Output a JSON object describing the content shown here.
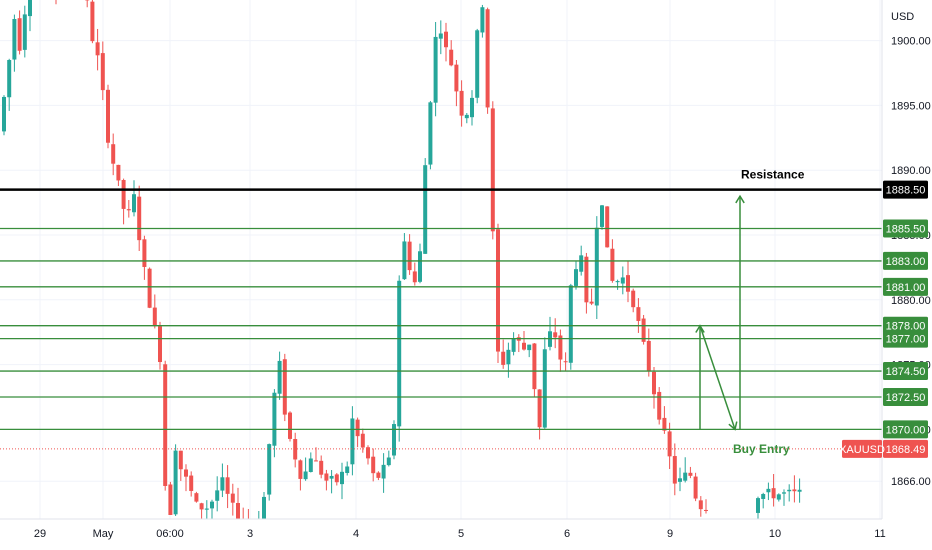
{
  "chart_data": {
    "type": "candlestick",
    "currency": "USD",
    "symbol": "XAUUSD",
    "y_range": [
      1864.5,
      1903.5
    ],
    "x_range": [
      0,
      932
    ],
    "yticks": [
      {
        "label": "1866.00",
        "value": 1866
      },
      {
        "label": "1870.00",
        "value": 1870
      },
      {
        "label": "1875.00",
        "value": 1875
      },
      {
        "label": "1880.00",
        "value": 1880
      },
      {
        "label": "1885.00",
        "value": 1885
      },
      {
        "label": "1890.00",
        "value": 1890
      },
      {
        "label": "1895.00",
        "value": 1895
      },
      {
        "label": "1900.00",
        "value": 1900
      }
    ],
    "xticks": [
      {
        "label": "29",
        "value": 40
      },
      {
        "label": "May",
        "value": 103
      },
      {
        "label": "06:00",
        "value": 170
      },
      {
        "label": "3",
        "value": 250
      },
      {
        "label": "4",
        "value": 356
      },
      {
        "label": "5",
        "value": 461
      },
      {
        "label": "6",
        "value": 567
      },
      {
        "label": "9",
        "value": 670
      },
      {
        "label": "10",
        "value": 775
      },
      {
        "label": "11",
        "value": 880
      }
    ],
    "resistance": {
      "value": 1888.5,
      "label": "1888.50",
      "text": "Resistance"
    },
    "levels": [
      {
        "value": 1885.5,
        "label": "1885.50"
      },
      {
        "value": 1883.0,
        "label": "1883.00"
      },
      {
        "value": 1881.0,
        "label": "1881.00"
      },
      {
        "value": 1878.0,
        "label": "1878.00"
      },
      {
        "value": 1877.0,
        "label": "1877.00"
      },
      {
        "value": 1874.5,
        "label": "1874.50"
      },
      {
        "value": 1872.5,
        "label": "1872.50"
      },
      {
        "value": 1870.0,
        "label": "1870.00"
      }
    ],
    "last_price": {
      "value": 1868.49,
      "label": "1868.49",
      "symbol": "XAUUSD"
    },
    "buy_entry": {
      "text": "Buy Entry",
      "value": 1868.5
    },
    "arrows": [
      {
        "x1": 700,
        "y1": 1870.0,
        "x2": 700,
        "y2": 1878.0
      },
      {
        "x1": 700,
        "y1": 1878.0,
        "x2": 735,
        "y2": 1870.0
      },
      {
        "x1": 740,
        "y1": 1870.0,
        "x2": 740,
        "y2": 1888.0
      }
    ],
    "price_path": [
      [
        2,
        1893
      ],
      [
        10,
        1897
      ],
      [
        18,
        1902
      ],
      [
        24,
        1899
      ],
      [
        30,
        1904
      ],
      [
        45,
        1905
      ],
      [
        60,
        1904
      ],
      [
        75,
        1906
      ],
      [
        88,
        1904
      ],
      [
        96,
        1900
      ],
      [
        103,
        1898
      ],
      [
        110,
        1893
      ],
      [
        118,
        1890
      ],
      [
        124,
        1888
      ],
      [
        130,
        1886
      ],
      [
        137,
        1888
      ],
      [
        144,
        1884
      ],
      [
        150,
        1881
      ],
      [
        157,
        1878
      ],
      [
        163,
        1876
      ],
      [
        168,
        1866
      ],
      [
        173,
        1863
      ],
      [
        178,
        1869
      ],
      [
        184,
        1867
      ],
      [
        190,
        1866
      ],
      [
        200,
        1864
      ],
      [
        212,
        1864
      ],
      [
        225,
        1866
      ],
      [
        235,
        1864
      ],
      [
        245,
        1863
      ],
      [
        258,
        1862
      ],
      [
        268,
        1865
      ],
      [
        276,
        1872
      ],
      [
        283,
        1875
      ],
      [
        290,
        1870
      ],
      [
        298,
        1868
      ],
      [
        306,
        1866
      ],
      [
        314,
        1868
      ],
      [
        322,
        1867
      ],
      [
        330,
        1866
      ],
      [
        340,
        1866
      ],
      [
        350,
        1867
      ],
      [
        356,
        1871
      ],
      [
        362,
        1869
      ],
      [
        370,
        1868
      ],
      [
        378,
        1866
      ],
      [
        388,
        1867
      ],
      [
        396,
        1868
      ],
      [
        404,
        1885
      ],
      [
        410,
        1884
      ],
      [
        416,
        1881
      ],
      [
        422,
        1882
      ],
      [
        428,
        1890
      ],
      [
        433,
        1895
      ],
      [
        438,
        1900
      ],
      [
        444,
        1901
      ],
      [
        450,
        1899
      ],
      [
        456,
        1898
      ],
      [
        462,
        1895
      ],
      [
        468,
        1894
      ],
      [
        476,
        1896
      ],
      [
        482,
        1902
      ],
      [
        486,
        1903
      ],
      [
        492,
        1893
      ],
      [
        496,
        1885
      ],
      [
        500,
        1876
      ],
      [
        508,
        1875
      ],
      [
        514,
        1877
      ],
      [
        520,
        1877
      ],
      [
        526,
        1876
      ],
      [
        532,
        1877
      ],
      [
        538,
        1873
      ],
      [
        543,
        1870
      ],
      [
        548,
        1876
      ],
      [
        556,
        1878
      ],
      [
        562,
        1876
      ],
      [
        568,
        1874
      ],
      [
        574,
        1881
      ],
      [
        580,
        1883
      ],
      [
        586,
        1883
      ],
      [
        592,
        1877
      ],
      [
        596,
        1881
      ],
      [
        600,
        1886
      ],
      [
        606,
        1888
      ],
      [
        612,
        1882
      ],
      [
        618,
        1881
      ],
      [
        624,
        1882
      ],
      [
        630,
        1881
      ],
      [
        636,
        1880
      ],
      [
        642,
        1878
      ],
      [
        648,
        1876
      ],
      [
        654,
        1874
      ],
      [
        660,
        1872
      ],
      [
        666,
        1870
      ],
      [
        672,
        1868
      ],
      [
        678,
        1866
      ],
      [
        686,
        1866
      ],
      [
        692,
        1867
      ],
      [
        698,
        1865
      ],
      [
        705,
        1864
      ],
      [
        760,
        1865
      ],
      [
        770,
        1865
      ],
      [
        785,
        1865
      ],
      [
        800,
        1865
      ]
    ]
  },
  "annotations": {
    "buy_entry_text": "Buy Entry",
    "resistance_text": "Resistance"
  },
  "colors": {
    "up": "#26a69a",
    "down": "#ef5350",
    "level": "#388e3c",
    "resistance": "#000000",
    "grid": "#f0f3fa",
    "last_price": "#ef5350"
  }
}
